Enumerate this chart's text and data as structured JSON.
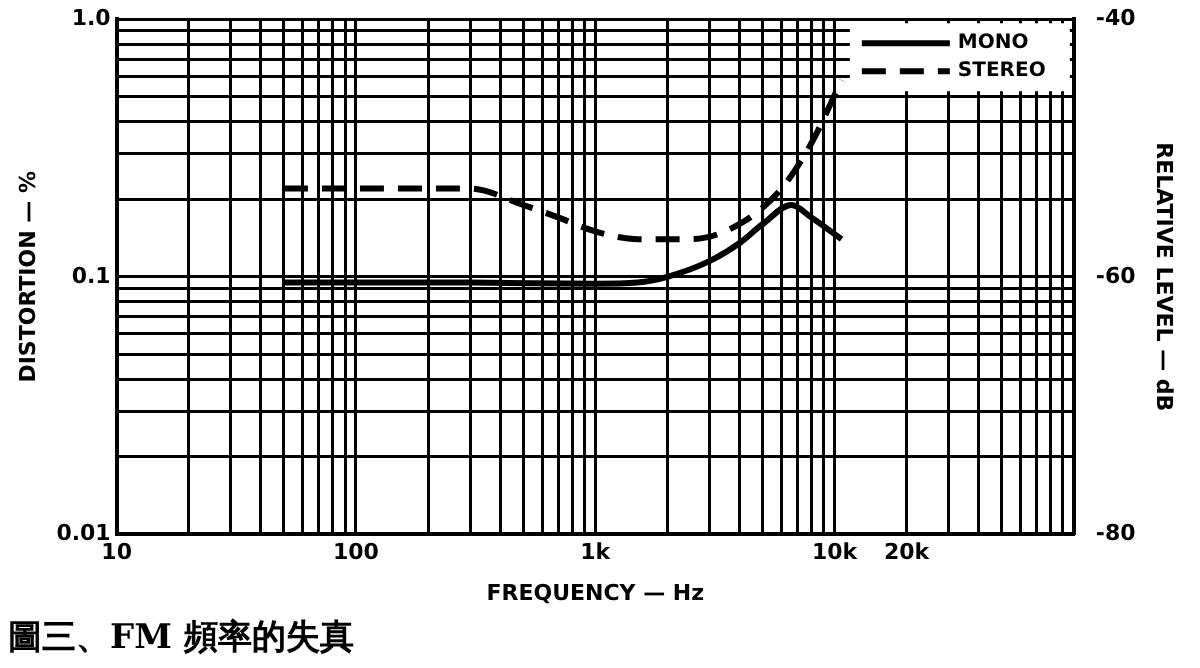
{
  "chart_data": {
    "type": "line",
    "title": "圖三、FM 頻率的失真",
    "xlabel": "FREQUENCY — Hz",
    "ylabel": "DISTORTION — %",
    "y2label": "RELATIVE LEVEL — dB",
    "log": "xy",
    "grid": true,
    "legend": "top right",
    "marker": "none",
    "xlim": [
      10,
      100000
    ],
    "xticks": [
      10,
      {
        "value": 20,
        "label": null
      },
      {
        "value": 30,
        "label": null
      },
      {
        "value": 40,
        "label": null
      },
      {
        "value": 50,
        "label": null
      },
      {
        "value": 60,
        "label": null
      },
      {
        "value": 70,
        "label": null
      },
      {
        "value": 80,
        "label": null
      },
      {
        "value": 90,
        "label": null
      },
      100,
      {
        "value": 200,
        "label": null
      },
      {
        "value": 300,
        "label": null
      },
      {
        "value": 400,
        "label": null
      },
      {
        "value": 500,
        "label": null
      },
      {
        "value": 600,
        "label": null
      },
      {
        "value": 700,
        "label": null
      },
      {
        "value": 800,
        "label": null
      },
      {
        "value": 900,
        "label": null
      },
      {
        "value": 1000,
        "label": "1k"
      },
      {
        "value": 2000,
        "label": null
      },
      {
        "value": 3000,
        "label": null
      },
      {
        "value": 4000,
        "label": null
      },
      {
        "value": 5000,
        "label": null
      },
      {
        "value": 6000,
        "label": null
      },
      {
        "value": 7000,
        "label": null
      },
      {
        "value": 8000,
        "label": null
      },
      {
        "value": 9000,
        "label": null
      },
      {
        "value": 10000,
        "label": "10k"
      },
      {
        "value": 20000,
        "label": "20k"
      },
      {
        "value": 30000,
        "label": null
      },
      {
        "value": 40000,
        "label": null
      },
      {
        "value": 50000,
        "label": null
      },
      {
        "value": 60000,
        "label": null
      },
      {
        "value": 70000,
        "label": null
      },
      {
        "value": 80000,
        "label": null
      },
      {
        "value": 90000,
        "label": null
      },
      {
        "value": 100000,
        "label": null
      }
    ],
    "ylim": [
      0.01,
      1
    ],
    "yticks": [
      0.01,
      {
        "value": 0.02,
        "label": null
      },
      {
        "value": 0.03,
        "label": null
      },
      {
        "value": 0.04,
        "label": null
      },
      {
        "value": 0.05,
        "label": null
      },
      {
        "value": 0.06,
        "label": null
      },
      {
        "value": 0.07,
        "label": null
      },
      {
        "value": 0.08,
        "label": null
      },
      {
        "value": 0.09,
        "label": null
      },
      0.1,
      {
        "value": 0.2,
        "label": null
      },
      {
        "value": 0.3,
        "label": null
      },
      {
        "value": 0.4,
        "label": null
      },
      {
        "value": 0.5,
        "label": null
      },
      {
        "value": 0.6,
        "label": null
      },
      {
        "value": 0.7,
        "label": null
      },
      {
        "value": 0.8,
        "label": null
      },
      {
        "value": 0.9,
        "label": null
      },
      {
        "value": 1,
        "label": "1.0"
      }
    ],
    "y2lim": [
      -80,
      -40
    ],
    "y2ticks": [
      -80,
      -60,
      -40
    ],
    "series": [
      {
        "name": "MONO",
        "color": "#000000",
        "line_style": "solid",
        "x": [
          50,
          100,
          300,
          1000,
          1500,
          2000,
          3000,
          4000,
          5000,
          6600,
          8000,
          10700
        ],
        "values": [
          0.095,
          0.095,
          0.095,
          0.094,
          0.095,
          0.1,
          0.115,
          0.135,
          0.16,
          0.19,
          0.17,
          0.14
        ]
      },
      {
        "name": "STEREO",
        "color": "#000000",
        "line_style": "dashed",
        "x": [
          50,
          100,
          300,
          500,
          700,
          1000,
          1500,
          2500,
          4000,
          6000,
          8000,
          10700
        ],
        "values": [
          0.22,
          0.22,
          0.22,
          0.19,
          0.17,
          0.15,
          0.14,
          0.14,
          0.16,
          0.22,
          0.33,
          0.58
        ]
      }
    ]
  }
}
